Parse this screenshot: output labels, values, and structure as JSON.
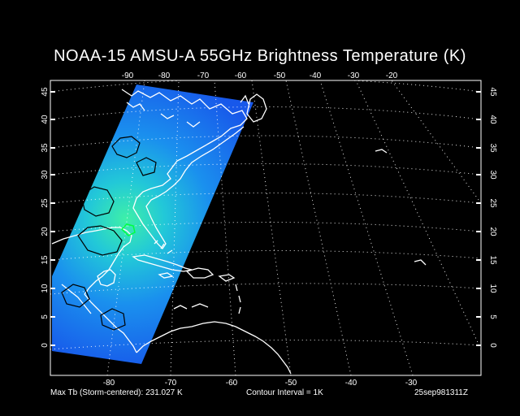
{
  "title": "NOAA-15 AMSU-A 55GHz Brightness Temperature (K)",
  "map": {
    "top_lon_labels": [
      "-90",
      "-80",
      "-70",
      "-60",
      "-50",
      "-40",
      "-30",
      "-20"
    ],
    "bottom_lon_labels": [
      "-80",
      "-70",
      "-60",
      "-50",
      "-40",
      "-30"
    ],
    "lat_labels": [
      "45",
      "40",
      "35",
      "30",
      "25",
      "20",
      "15",
      "10",
      "5",
      "0"
    ],
    "graticule": "dotted",
    "colors": {
      "background": "#000000",
      "coastline": "#ffffff",
      "graticule": "#ffffff",
      "contour": "#000000",
      "swath_cool": "#1a5cf0",
      "swath_warm": "#2ee8b0",
      "storm_center": "#00ff40"
    }
  },
  "footer": {
    "max_tb": "Max Tb (Storm-centered):  231.027 K",
    "contour_interval": "Contour Interval = 1K",
    "timestamp": "25sep981311Z"
  }
}
